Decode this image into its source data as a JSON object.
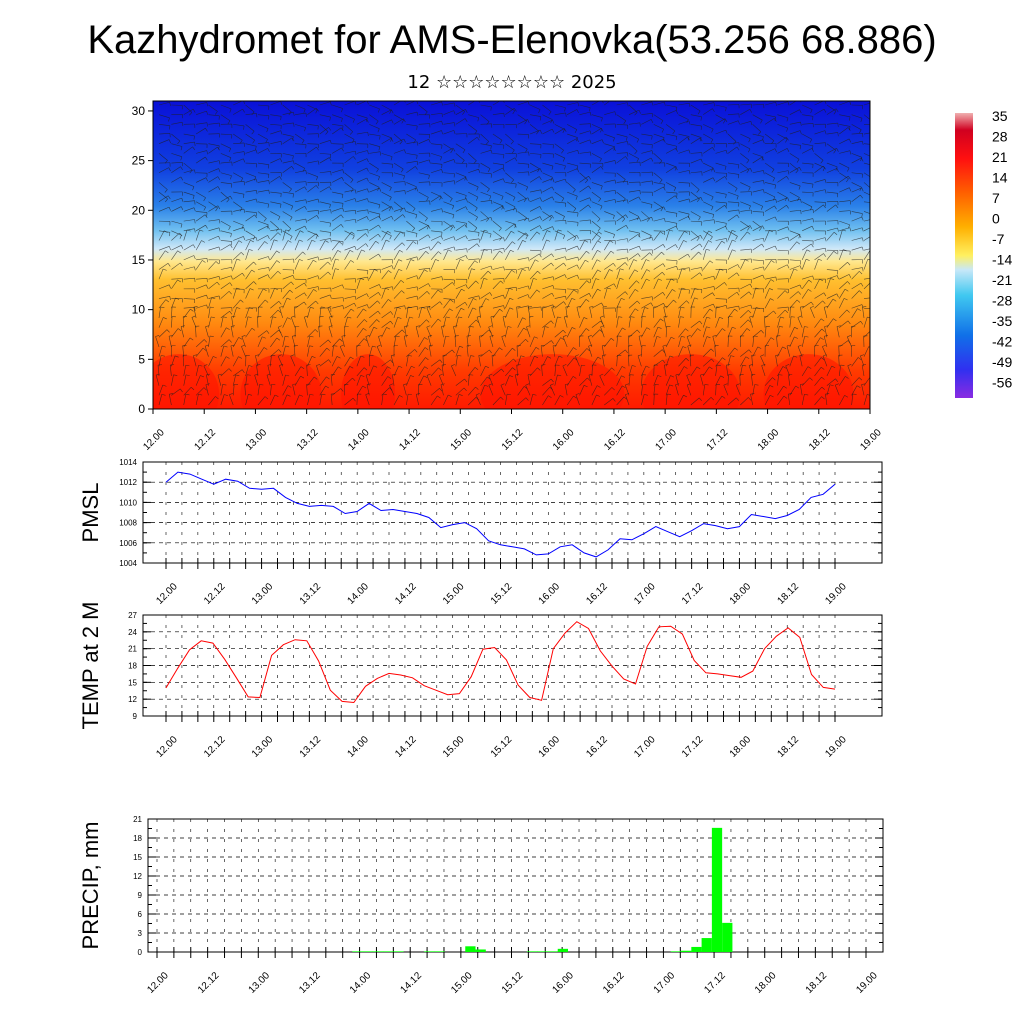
{
  "header": {
    "title": "Kazhydromet for AMS-Elenovka(53.256 68.886)",
    "subtitle": "12 ☆☆☆☆☆☆☆☆ 2025"
  },
  "chart_data": [
    {
      "type": "heatmap",
      "panel": "vertical-cross-section",
      "x_ticks": [
        "12.00",
        "12.12",
        "13.00",
        "13.12",
        "14.00",
        "14.12",
        "15.00",
        "15.12",
        "16.00",
        "16.12",
        "17.00",
        "17.12",
        "18.00",
        "18.12",
        "19.00"
      ],
      "ylim": [
        0,
        31
      ],
      "y_ticks": [
        0,
        5,
        10,
        15,
        20,
        25,
        30
      ],
      "colorbar_labels": [
        "35",
        "28",
        "21",
        "14",
        "7",
        "0",
        "-7",
        "-14",
        "-21",
        "-28",
        "-35",
        "-42",
        "-49",
        "-56"
      ],
      "colorbar_range": [
        -60,
        38
      ],
      "wind_barbs": true
    },
    {
      "type": "line",
      "ylabel": "PMSL",
      "ylim": [
        1004,
        1014
      ],
      "y_ticks": [
        1004,
        1006,
        1008,
        1010,
        1012,
        1014
      ],
      "x_ticks": [
        "12.00",
        "12.12",
        "13.00",
        "13.12",
        "14.00",
        "14.12",
        "15.00",
        "15.12",
        "16.00",
        "16.12",
        "17.00",
        "17.12",
        "18.00",
        "18.12",
        "19.00"
      ],
      "color": "#0000ff",
      "values": [
        1012.0,
        1013.0,
        1012.8,
        1012.3,
        1011.8,
        1012.3,
        1012.1,
        1011.4,
        1011.3,
        1011.4,
        1010.5,
        1009.9,
        1009.6,
        1009.7,
        1009.6,
        1008.9,
        1009.1,
        1009.9,
        1009.2,
        1009.3,
        1009.1,
        1008.9,
        1008.5,
        1007.5,
        1007.8,
        1008.0,
        1007.4,
        1006.2,
        1005.8,
        1005.6,
        1005.4,
        1004.8,
        1004.9,
        1005.6,
        1005.8,
        1005.0,
        1004.6,
        1005.3,
        1006.4,
        1006.3,
        1006.9,
        1007.6,
        1007.1,
        1006.6,
        1007.2,
        1007.9,
        1007.7,
        1007.4,
        1007.6,
        1008.8,
        1008.6,
        1008.4,
        1008.7,
        1009.3,
        1010.5,
        1010.8,
        1011.8
      ],
      "grid": true
    },
    {
      "type": "line",
      "ylabel": "TEMP at 2 M",
      "ylim": [
        9,
        27
      ],
      "y_ticks": [
        9,
        12,
        15,
        18,
        21,
        24,
        27
      ],
      "x_ticks": [
        "12.00",
        "12.12",
        "13.00",
        "13.12",
        "14.00",
        "14.12",
        "15.00",
        "15.12",
        "16.00",
        "16.12",
        "17.00",
        "17.12",
        "18.00",
        "18.12",
        "19.00"
      ],
      "color": "#ff0000",
      "values": [
        14.0,
        17.5,
        20.8,
        22.4,
        22.0,
        19.1,
        15.8,
        12.4,
        12.3,
        19.8,
        21.7,
        22.6,
        22.4,
        18.8,
        13.6,
        11.6,
        11.4,
        14.3,
        15.7,
        16.6,
        16.3,
        15.8,
        14.4,
        13.6,
        12.8,
        13.0,
        16.0,
        20.9,
        21.2,
        19.0,
        14.5,
        12.3,
        11.8,
        21.0,
        23.8,
        25.8,
        24.6,
        20.6,
        17.9,
        15.6,
        14.7,
        21.4,
        24.9,
        25.0,
        23.6,
        18.9,
        16.7,
        16.5,
        16.2,
        15.9,
        17.0,
        21.0,
        23.2,
        24.7,
        23.0,
        16.4,
        14.1,
        13.8
      ],
      "grid": true
    },
    {
      "type": "bar",
      "ylabel": "PRECIP, mm",
      "ylim": [
        0,
        21
      ],
      "y_ticks": [
        0,
        3,
        6,
        9,
        12,
        15,
        18,
        21
      ],
      "x_ticks": [
        "12.00",
        "12.12",
        "13.00",
        "13.12",
        "14.00",
        "14.12",
        "15.00",
        "15.12",
        "16.00",
        "16.12",
        "17.00",
        "17.12",
        "18.00",
        "18.12",
        "19.00"
      ],
      "color": "#00ff00",
      "values": [
        0,
        0,
        0,
        0,
        0,
        0,
        0,
        0,
        0,
        0,
        0,
        0,
        0,
        0,
        0,
        0,
        0,
        0,
        0,
        0.1,
        0.1,
        0.1,
        0.1,
        0.1,
        0,
        0,
        0.1,
        0.1,
        0,
        0,
        0.9,
        0.4,
        0,
        0,
        0,
        0,
        0.1,
        0.1,
        0.1,
        0.5,
        0,
        0,
        0,
        0,
        0,
        0,
        0,
        0,
        0,
        0,
        0.1,
        0.2,
        0.8,
        2.2,
        19.6,
        4.6,
        0,
        0,
        0,
        0,
        0,
        0,
        0,
        0,
        0,
        0,
        0,
        0,
        0,
        0
      ],
      "grid": true
    }
  ]
}
